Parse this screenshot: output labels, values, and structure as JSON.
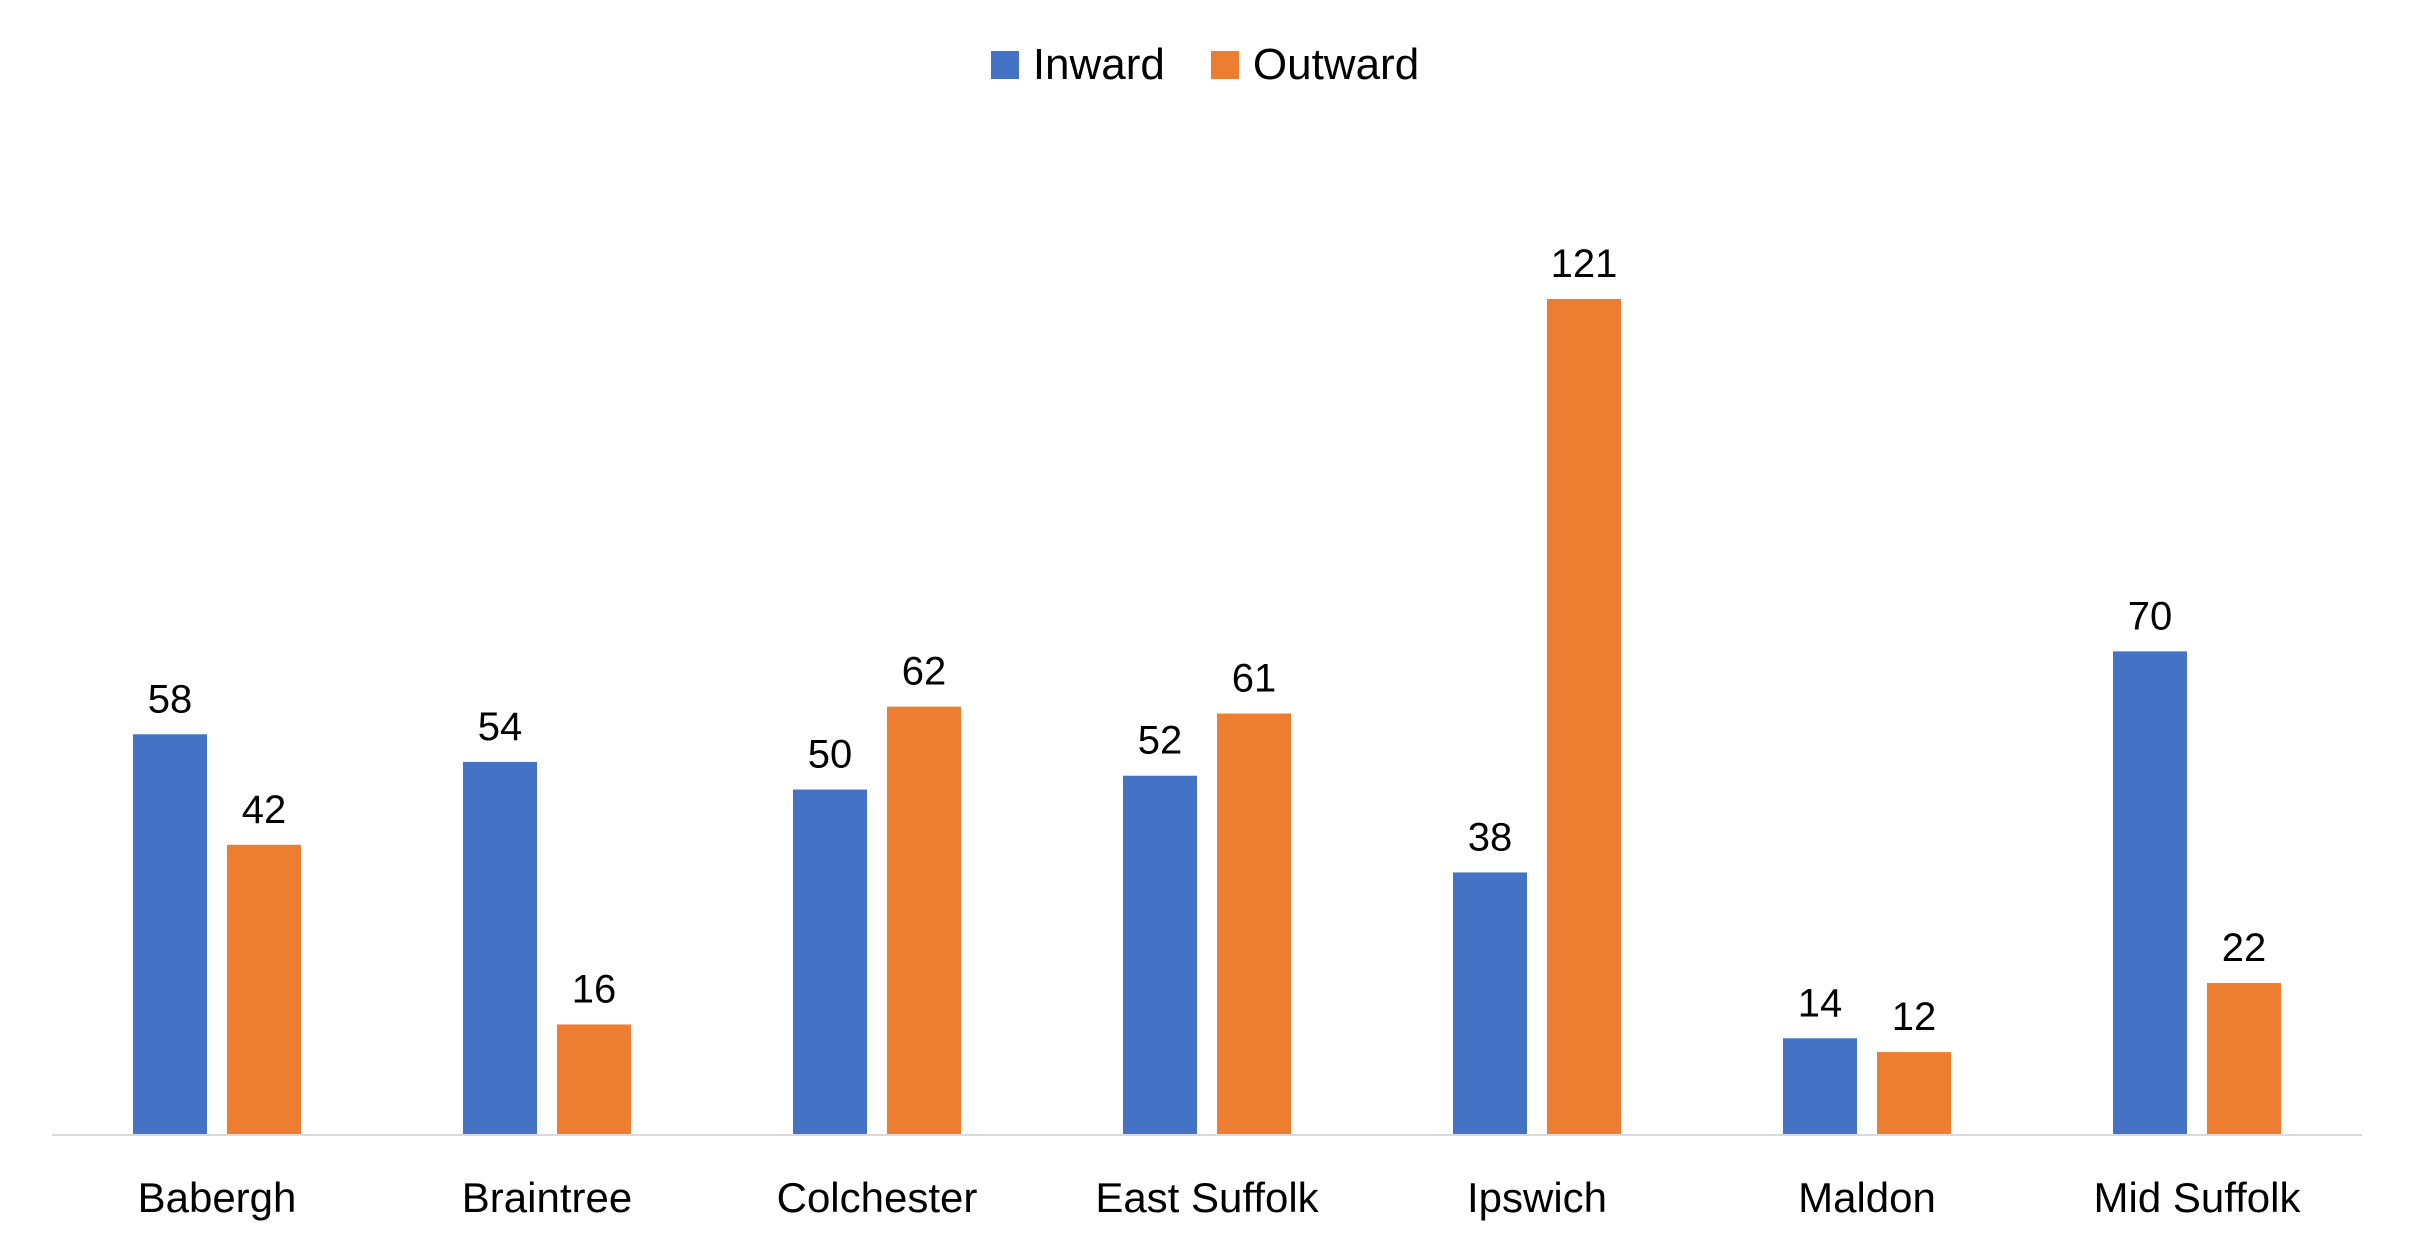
{
  "chart_data": {
    "type": "bar",
    "title": "",
    "xlabel": "",
    "ylabel": "",
    "categories": [
      "Babergh",
      "Braintree",
      "Colchester",
      "East Suffolk",
      "Ipswich",
      "Maldon",
      "Mid Suffolk"
    ],
    "series": [
      {
        "name": "Inward",
        "color": "#4472C4",
        "values": [
          58,
          54,
          50,
          52,
          38,
          14,
          70
        ]
      },
      {
        "name": "Outward",
        "color": "#ED7D31",
        "values": [
          42,
          16,
          62,
          61,
          121,
          12,
          22
        ]
      }
    ],
    "ylim": [
      0,
      121
    ],
    "grid": false,
    "legend_position": "top-center",
    "data_labels": true
  }
}
